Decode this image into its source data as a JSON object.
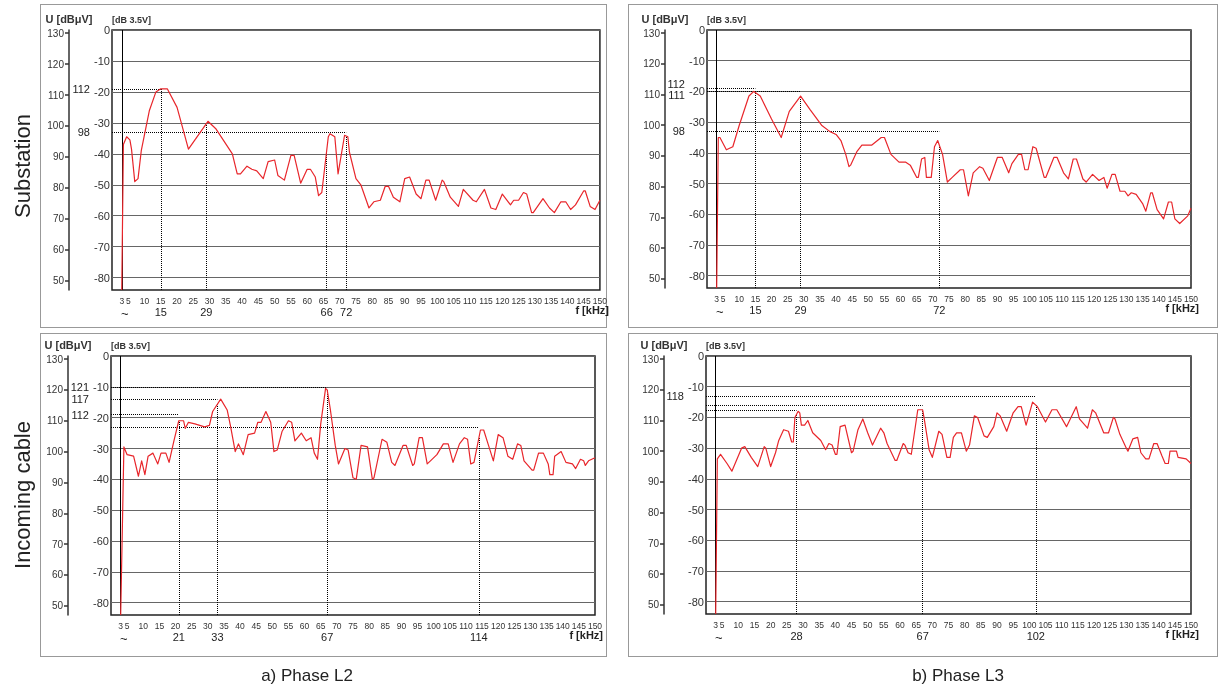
{
  "chart_data": [
    {
      "type": "line",
      "title": "Substation",
      "ylabel": "[dB 3.5V]",
      "y2label": "U [dBμV]",
      "xlabel": "f [kHz]",
      "color": "#e8262b",
      "marker": "none",
      "grid": "y",
      "xlim": [
        0,
        150
      ],
      "xticks": [
        3,
        5,
        10,
        15,
        20,
        25,
        30,
        35,
        40,
        45,
        50,
        55,
        60,
        65,
        70,
        75,
        80,
        85,
        90,
        95,
        100,
        105,
        110,
        115,
        120,
        125,
        130,
        135,
        140,
        145,
        150
      ],
      "ylim": [
        -84,
        0
      ],
      "yticks": [
        -80,
        -70,
        -60,
        -50,
        -40,
        -30,
        -20,
        -10,
        0
      ],
      "y2lim": [
        47,
        131
      ],
      "y2ticks": [
        50,
        60,
        70,
        80,
        90,
        100,
        110,
        120,
        130
      ],
      "x": [
        3,
        3.5,
        4.5,
        5.5,
        6,
        7,
        8,
        9,
        11.5,
        13.5,
        15,
        17,
        20,
        23.5,
        29.5,
        32,
        37,
        38.5,
        39.5,
        41.5,
        43,
        44.5,
        46.5,
        48,
        50,
        51,
        53,
        55,
        56,
        58,
        60,
        61,
        62.5,
        63.5,
        64.5,
        66.5,
        67,
        68.5,
        69.5,
        71.5,
        72.5,
        73,
        75,
        76.5,
        79,
        80.5,
        82.5,
        84,
        85,
        86.5,
        88.5,
        90,
        91.5,
        93.5,
        95,
        96.5,
        97.5,
        99.5,
        101.5,
        102,
        104,
        106.5,
        108,
        111,
        112,
        114.5,
        116.5,
        118,
        120,
        122.5,
        123.5,
        125,
        126.5,
        127.5,
        129,
        129.5,
        132.5,
        134.5,
        136,
        138,
        139.5,
        141,
        142.5,
        145,
        145.5,
        147,
        148.5,
        150
      ],
      "values": [
        -84,
        -37,
        -34.5,
        -35.5,
        -38.5,
        -49,
        -48,
        -39,
        -26,
        -20,
        -19,
        -19,
        -25,
        -38.5,
        -29.5,
        -32,
        -40,
        -46.5,
        -46.5,
        -44,
        -45,
        -45.5,
        -48,
        -42.5,
        -42,
        -47,
        -48.5,
        -40.5,
        -40.5,
        -49.5,
        -45,
        -45,
        -47.5,
        -53.5,
        -52.5,
        -34.5,
        -33.5,
        -34.5,
        -46.5,
        -34,
        -34.5,
        -39.5,
        -48,
        -50,
        -57.5,
        -55.5,
        -55,
        -50.5,
        -50.5,
        -54,
        -55.5,
        -48,
        -47.5,
        -53,
        -54.5,
        -48.5,
        -48.5,
        -55,
        -48.5,
        -49,
        -54,
        -57,
        -51.5,
        -55,
        -55.5,
        -51.5,
        -57.5,
        -58,
        -53,
        -56.5,
        -55,
        -55,
        -52.5,
        -53,
        -59,
        -59,
        -54.5,
        -57.5,
        -59,
        -55.5,
        -55.5,
        -58,
        -56.5,
        -52,
        -52,
        -57,
        -58,
        -55
      ],
      "ref_lines": [
        {
          "axis": "x",
          "value": 3,
          "label": null,
          "color": "#000000",
          "line_style": "solid"
        },
        {
          "axis": "x",
          "value": 15,
          "label": "15",
          "color": "#000000",
          "line_style": "dotted"
        },
        {
          "axis": "x",
          "value": 29,
          "label": "29",
          "color": "#000000",
          "line_style": "dotted"
        },
        {
          "axis": "x",
          "value": 66,
          "label": "66",
          "color": "#000000",
          "line_style": "dotted"
        },
        {
          "axis": "x",
          "value": 72,
          "label": "72",
          "color": "#000000",
          "line_style": "dotted"
        },
        {
          "axis": "y2",
          "value": 112,
          "label": "112",
          "color": "#000000",
          "line_style": "dotted"
        },
        {
          "axis": "y2",
          "value": 98,
          "label": "98",
          "color": "#000000",
          "line_style": "dotted"
        }
      ],
      "annotations": [
        "~"
      ]
    },
    {
      "type": "line",
      "ylabel": "[dB 3.5V]",
      "y2label": "U [dBμV]",
      "xlabel": "f [kHz]",
      "color": "#e8262b",
      "marker": "none",
      "grid": "y",
      "xlim": [
        0,
        150
      ],
      "xticks": [
        3,
        5,
        10,
        15,
        20,
        25,
        30,
        35,
        40,
        45,
        50,
        55,
        60,
        65,
        70,
        75,
        80,
        85,
        90,
        95,
        100,
        105,
        110,
        115,
        120,
        125,
        130,
        135,
        140,
        145,
        150
      ],
      "ylim": [
        -84,
        0
      ],
      "yticks": [
        -80,
        -70,
        -60,
        -50,
        -40,
        -30,
        -20,
        -10,
        0
      ],
      "y2lim": [
        47,
        131
      ],
      "y2ticks": [
        50,
        60,
        70,
        80,
        90,
        100,
        110,
        120,
        130
      ],
      "x": [
        3,
        3.5,
        4,
        6,
        8,
        10,
        13,
        14.5,
        16.5,
        20,
        23,
        25.5,
        29,
        32,
        35.5,
        38,
        40,
        41.5,
        43,
        44,
        44.5,
        46.5,
        48,
        51,
        54,
        55,
        57,
        59.5,
        61.5,
        63,
        65,
        65.5,
        66.5,
        67.5,
        68,
        69.5,
        70.5,
        71.5,
        73,
        74.5,
        76,
        78.5,
        79.5,
        81,
        82.5,
        84.5,
        85.5,
        87.5,
        90,
        91.5,
        93.5,
        94.5,
        96.5,
        97.5,
        98.5,
        99.5,
        101,
        102,
        104.5,
        105,
        107.5,
        108.5,
        110.5,
        112,
        113.5,
        114.5,
        116.5,
        117.5,
        119.5,
        121.5,
        123,
        124,
        125.5,
        126.5,
        128,
        129.5,
        130.5,
        131.5,
        133,
        135,
        136,
        137.5,
        138,
        139.5,
        141.5,
        143,
        144,
        145,
        146.5,
        149,
        150
      ],
      "values": [
        -84,
        -35,
        -35,
        -39,
        -38,
        -31,
        -21.5,
        -20,
        -21.5,
        -29,
        -35,
        -26.5,
        -21.5,
        -26,
        -31,
        -33,
        -34,
        -36,
        -40.5,
        -44.5,
        -44,
        -39.5,
        -37.5,
        -37.5,
        -35,
        -35,
        -40.5,
        -43,
        -43,
        -44,
        -48,
        -48,
        -42,
        -41.5,
        -48,
        -48,
        -38,
        -36,
        -40.5,
        -49.5,
        -48,
        -45.5,
        -45.5,
        -54,
        -46.5,
        -44.5,
        -45,
        -49,
        -41.5,
        -41.5,
        -46.5,
        -43.5,
        -40.5,
        -40.5,
        -45.5,
        -45.5,
        -38,
        -38.5,
        -48,
        -48,
        -41.5,
        -41.5,
        -46.5,
        -48.5,
        -42,
        -42,
        -48.5,
        -49.5,
        -47,
        -49,
        -48,
        -51.5,
        -47,
        -47,
        -52.5,
        -52.5,
        -54,
        -53,
        -53.5,
        -56.5,
        -59,
        -53,
        -53,
        -58.5,
        -61.5,
        -56,
        -56,
        -61.5,
        -63,
        -60.5,
        -58
      ],
      "ref_lines": [
        {
          "axis": "x",
          "value": 3,
          "label": null,
          "color": "#000000",
          "line_style": "solid"
        },
        {
          "axis": "x",
          "value": 15,
          "label": "15",
          "color": "#000000",
          "line_style": "dotted"
        },
        {
          "axis": "x",
          "value": 29,
          "label": "29",
          "color": "#000000",
          "line_style": "dotted"
        },
        {
          "axis": "x",
          "value": 72,
          "label": "72",
          "color": "#000000",
          "line_style": "dotted"
        },
        {
          "axis": "y2",
          "value": 112,
          "label": "112",
          "color": "#000000",
          "line_style": "dotted"
        },
        {
          "axis": "y2",
          "value": 111,
          "label": "111",
          "color": "#000000",
          "line_style": "dotted"
        },
        {
          "axis": "y2",
          "value": 98,
          "label": "98",
          "color": "#000000",
          "line_style": "dotted"
        }
      ],
      "annotations": [
        "~"
      ]
    },
    {
      "type": "line",
      "title": "Incoming cable",
      "ylabel": "[dB 3.5V]",
      "y2label": "U [dBμV]",
      "xlabel": "f [kHz]",
      "color": "#e8262b",
      "marker": "none",
      "grid": "y",
      "xlim": [
        0,
        150
      ],
      "xticks": [
        3,
        5,
        10,
        15,
        20,
        25,
        30,
        35,
        40,
        45,
        50,
        55,
        60,
        65,
        70,
        75,
        80,
        85,
        90,
        95,
        100,
        105,
        110,
        115,
        120,
        125,
        130,
        135,
        140,
        145,
        150
      ],
      "ylim": [
        -84,
        0
      ],
      "yticks": [
        -80,
        -70,
        -60,
        -50,
        -40,
        -30,
        -20,
        -10,
        0
      ],
      "y2lim": [
        47,
        131
      ],
      "y2ticks": [
        50,
        60,
        70,
        80,
        90,
        100,
        110,
        120,
        130
      ],
      "x": [
        3,
        4,
        5,
        7,
        8.5,
        9.5,
        10.5,
        11.5,
        13,
        14.5,
        15.5,
        17,
        18,
        19.5,
        21,
        22.5,
        23,
        24,
        26,
        29,
        30.5,
        31.5,
        34,
        36,
        37,
        38.5,
        39.5,
        41,
        42.5,
        44.5,
        45.5,
        46.5,
        48,
        49.5,
        50.5,
        51.5,
        53,
        55,
        56,
        57,
        59,
        60.5,
        62,
        63,
        64,
        65,
        66.5,
        67,
        68,
        69.5,
        70.5,
        72.5,
        73.5,
        75,
        76,
        77.5,
        79.5,
        81,
        81.5,
        84,
        85.5,
        87,
        88,
        90.5,
        91.5,
        93.5,
        94,
        95.5,
        96.5,
        98,
        99,
        101,
        103,
        104.5,
        106,
        108,
        109.5,
        110.5,
        111.5,
        112.5,
        114.5,
        115.5,
        117,
        118.5,
        120,
        121.5,
        123,
        124.5,
        126,
        127,
        128,
        130.5,
        131,
        132.5,
        134,
        135.5,
        136,
        137,
        137.5,
        139.5,
        141,
        143,
        144,
        145.5,
        146.5,
        147,
        148,
        150
      ],
      "values": [
        -84,
        -29.5,
        -32,
        -32.5,
        -39,
        -34,
        -38.5,
        -32.5,
        -31.5,
        -35,
        -31.5,
        -31.5,
        -34.5,
        -27.5,
        -21,
        -21,
        -23.5,
        -21.5,
        -22,
        -23,
        -22.5,
        -18,
        -14,
        -17.5,
        -22.5,
        -31,
        -28.5,
        -32,
        -25.5,
        -25,
        -21.5,
        -21.5,
        -18,
        -21.5,
        -31,
        -30.5,
        -24.5,
        -21,
        -21.5,
        -27.5,
        -25,
        -27.5,
        -26.5,
        -31.5,
        -33.5,
        -22,
        -10.5,
        -11,
        -17.5,
        -29,
        -35,
        -30,
        -30.5,
        -39.5,
        -40,
        -29,
        -29.5,
        -40,
        -39.5,
        -27,
        -28,
        -34.5,
        -35.5,
        -29,
        -29,
        -35.5,
        -35,
        -26.5,
        -26.5,
        -35,
        -34,
        -32,
        -28.5,
        -28.5,
        -34.5,
        -28.5,
        -26.5,
        -27,
        -35,
        -34.5,
        -24,
        -24,
        -29,
        -34,
        -25.5,
        -26.5,
        -32.5,
        -33.5,
        -28.5,
        -29,
        -34,
        -37,
        -37,
        -31.5,
        -31.5,
        -35,
        -38.5,
        -38.5,
        -32.5,
        -31,
        -34.5,
        -35,
        -36.5,
        -33.5,
        -34,
        -35.5,
        -34,
        -33
      ],
      "ref_lines": [
        {
          "axis": "x",
          "value": 3,
          "label": null,
          "color": "#000000",
          "line_style": "solid"
        },
        {
          "axis": "x",
          "value": 21,
          "label": "21",
          "color": "#000000",
          "line_style": "dotted"
        },
        {
          "axis": "x",
          "value": 33,
          "label": "33",
          "color": "#000000",
          "line_style": "dotted"
        },
        {
          "axis": "x",
          "value": 67,
          "label": "67",
          "color": "#000000",
          "line_style": "dotted"
        },
        {
          "axis": "x",
          "value": 114,
          "label": "114",
          "color": "#000000",
          "line_style": "dotted"
        },
        {
          "axis": "y2",
          "value": 121,
          "label": "121",
          "color": "#000000",
          "line_style": "dotted"
        },
        {
          "axis": "y2",
          "value": 117,
          "label": "117",
          "color": "#000000",
          "line_style": "dotted"
        },
        {
          "axis": "y2",
          "value": 112,
          "label": "112",
          "color": "#000000",
          "line_style": "dotted"
        },
        {
          "axis": "y2",
          "value": 108,
          "label": null,
          "color": "#000000",
          "line_style": "dotted"
        }
      ],
      "annotations": [
        "a) Phase L2",
        "~"
      ]
    },
    {
      "type": "line",
      "ylabel": "[dB 3.5V]",
      "y2label": "U [dBμV]",
      "xlabel": "f [kHz]",
      "color": "#e8262b",
      "marker": "none",
      "grid": "y",
      "xlim": [
        0,
        150
      ],
      "xticks": [
        3,
        5,
        10,
        15,
        20,
        25,
        30,
        35,
        40,
        45,
        50,
        55,
        60,
        65,
        70,
        75,
        80,
        85,
        90,
        95,
        100,
        105,
        110,
        115,
        120,
        125,
        130,
        135,
        140,
        145,
        150
      ],
      "ylim": [
        -84,
        0
      ],
      "yticks": [
        -80,
        -70,
        -60,
        -50,
        -40,
        -30,
        -20,
        -10,
        0
      ],
      "y2lim": [
        47,
        131
      ],
      "y2ticks": [
        50,
        60,
        70,
        80,
        90,
        100,
        110,
        120,
        130
      ],
      "x": [
        3,
        3.5,
        4.5,
        6.5,
        8,
        11,
        12,
        14,
        16,
        18,
        18.5,
        20,
        21.5,
        22.5,
        24,
        25.5,
        26.5,
        27,
        27.5,
        28.5,
        29,
        29.5,
        30.5,
        31.5,
        33,
        35.5,
        37,
        38,
        39,
        40,
        40.5,
        41.5,
        43,
        45,
        45.5,
        47,
        48.5,
        50,
        51.5,
        54,
        55,
        56,
        58.5,
        59,
        61,
        61.5,
        62.5,
        63.5,
        65.5,
        67,
        67.5,
        69,
        70,
        72,
        73,
        74.5,
        75.5,
        76.5,
        77.5,
        79,
        80.5,
        81.5,
        83,
        84,
        86,
        87,
        89,
        90,
        91,
        93,
        95,
        96.5,
        97.5,
        99,
        101,
        102.5,
        105,
        107,
        108.5,
        111.5,
        114.5,
        115.5,
        118,
        119.5,
        120.5,
        123,
        124.5,
        126,
        126.5,
        128,
        130,
        130.5,
        132,
        133.5,
        134.5,
        136,
        137,
        138.5,
        139.5,
        141,
        142,
        143,
        143.5,
        145.5,
        146,
        148.5,
        150
      ],
      "values": [
        -84,
        -33.5,
        -32,
        -35,
        -37.5,
        -30,
        -29.5,
        -33,
        -36,
        -29.5,
        -30,
        -36,
        -31.5,
        -27.5,
        -24,
        -24.5,
        -28,
        -28,
        -20,
        -18,
        -18.5,
        -22.5,
        -22.5,
        -21,
        -25,
        -27.5,
        -30.5,
        -28.5,
        -29,
        -32,
        -32,
        -23,
        -22.5,
        -31.5,
        -31,
        -24,
        -20.5,
        -25,
        -29,
        -23.5,
        -25,
        -28.5,
        -34,
        -34,
        -28.5,
        -29,
        -31.5,
        -32,
        -17.5,
        -17.5,
        -20.5,
        -30.5,
        -33,
        -24.5,
        -25.5,
        -33,
        -33,
        -26.5,
        -25,
        -25,
        -31,
        -29,
        -19.5,
        -20,
        -26,
        -26.5,
        -23,
        -18.5,
        -19.5,
        -24.5,
        -18.5,
        -16.5,
        -16.5,
        -22.5,
        -15,
        -16.5,
        -21.5,
        -17.5,
        -17.5,
        -23,
        -16.5,
        -20.5,
        -23.5,
        -17.5,
        -18.5,
        -25,
        -25,
        -20,
        -20.5,
        -25.5,
        -30,
        -31,
        -27,
        -26.5,
        -31.5,
        -33.5,
        -33.5,
        -28.5,
        -28.5,
        -32.5,
        -35,
        -35,
        -31,
        -31,
        -33,
        -33.5,
        -35
      ],
      "ref_lines": [
        {
          "axis": "x",
          "value": 3,
          "label": null,
          "color": "#000000",
          "line_style": "solid"
        },
        {
          "axis": "x",
          "value": 28,
          "label": "28",
          "color": "#000000",
          "line_style": "dotted"
        },
        {
          "axis": "x",
          "value": 67,
          "label": "67",
          "color": "#000000",
          "line_style": "dotted"
        },
        {
          "axis": "x",
          "value": 102,
          "label": "102",
          "color": "#000000",
          "line_style": "dotted"
        },
        {
          "axis": "y2",
          "value": 118,
          "label": "118",
          "color": "#000000",
          "line_style": "dotted"
        },
        {
          "axis": "y2",
          "value": 115,
          "label": null,
          "color": "#000000",
          "line_style": "dotted"
        },
        {
          "axis": "y2",
          "value": 113.5,
          "label": null,
          "color": "#000000",
          "line_style": "dotted"
        }
      ],
      "annotations": [
        "b) Phase L3",
        "~"
      ]
    }
  ]
}
